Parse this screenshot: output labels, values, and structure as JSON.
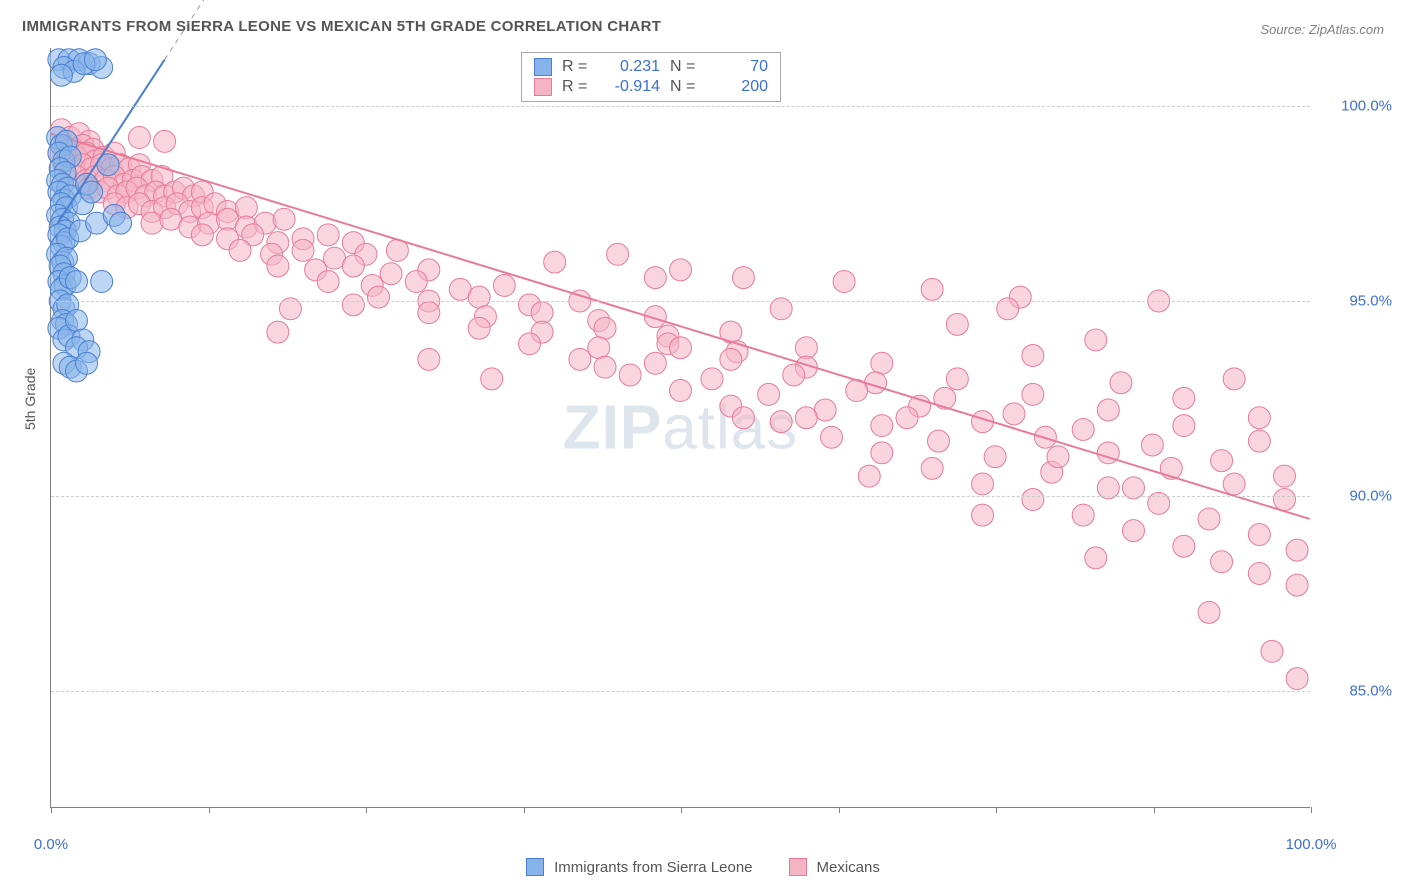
{
  "title": "IMMIGRANTS FROM SIERRA LEONE VS MEXICAN 5TH GRADE CORRELATION CHART",
  "source_prefix": "Source: ",
  "source_name": "ZipAtlas.com",
  "y_axis_title": "5th Grade",
  "watermark_bold": "ZIP",
  "watermark_rest": "atlas",
  "chart": {
    "type": "scatter",
    "background_color": "#ffffff",
    "grid_color": "#cccccc",
    "axis_color": "#808080",
    "tick_label_color": "#3b6fd6",
    "xlim": [
      0,
      100
    ],
    "ylim": [
      82,
      101.5
    ],
    "y_ticks": [
      85,
      90,
      95,
      100
    ],
    "y_tick_labels": [
      "85.0%",
      "90.0%",
      "95.0%",
      "100.0%"
    ],
    "x_ticks": [
      0,
      12.5,
      25,
      37.5,
      50,
      62.5,
      75,
      87.5,
      100
    ],
    "x_tick_labels": {
      "0": "0.0%",
      "100": "100.0%"
    },
    "marker_radius": 11,
    "marker_opacity": 0.55,
    "line_width": 2
  },
  "series": {
    "blue": {
      "label": "Immigrants from Sierra Leone",
      "fill": "#86b4ea",
      "stroke": "#4a7fd1",
      "R": "0.231",
      "N": "70",
      "trend": {
        "x1": 0.5,
        "y1": 97.0,
        "x2": 9,
        "y2": 101.2,
        "dashed_ext": true
      },
      "points": [
        [
          0.6,
          101.2
        ],
        [
          1.4,
          101.2
        ],
        [
          2.2,
          101.2
        ],
        [
          3.0,
          101.1
        ],
        [
          4.0,
          101.0
        ],
        [
          1.0,
          101.0
        ],
        [
          1.8,
          100.9
        ],
        [
          2.6,
          101.1
        ],
        [
          3.5,
          101.2
        ],
        [
          0.8,
          100.8
        ],
        [
          0.5,
          99.2
        ],
        [
          0.8,
          99.0
        ],
        [
          1.2,
          99.1
        ],
        [
          0.6,
          98.8
        ],
        [
          1.0,
          98.6
        ],
        [
          1.5,
          98.7
        ],
        [
          0.7,
          98.4
        ],
        [
          1.1,
          98.3
        ],
        [
          0.5,
          98.1
        ],
        [
          0.9,
          98.0
        ],
        [
          1.3,
          97.9
        ],
        [
          0.6,
          97.8
        ],
        [
          1.0,
          97.6
        ],
        [
          1.5,
          97.7
        ],
        [
          0.8,
          97.5
        ],
        [
          1.2,
          97.4
        ],
        [
          0.5,
          97.2
        ],
        [
          0.9,
          97.1
        ],
        [
          1.4,
          97.0
        ],
        [
          0.7,
          96.9
        ],
        [
          1.1,
          96.8
        ],
        [
          0.6,
          96.7
        ],
        [
          1.0,
          96.5
        ],
        [
          0.8,
          96.4
        ],
        [
          1.3,
          96.6
        ],
        [
          0.5,
          96.2
        ],
        [
          0.9,
          96.0
        ],
        [
          1.2,
          96.1
        ],
        [
          0.7,
          95.9
        ],
        [
          1.0,
          95.7
        ],
        [
          0.6,
          95.5
        ],
        [
          1.1,
          95.4
        ],
        [
          0.8,
          95.3
        ],
        [
          1.5,
          95.6
        ],
        [
          0.7,
          95.0
        ],
        [
          1.0,
          94.8
        ],
        [
          1.3,
          94.9
        ],
        [
          0.9,
          94.5
        ],
        [
          1.2,
          94.4
        ],
        [
          0.6,
          94.3
        ],
        [
          1.0,
          94.0
        ],
        [
          1.4,
          94.1
        ],
        [
          2.0,
          95.5
        ],
        [
          2.3,
          96.8
        ],
        [
          2.5,
          97.5
        ],
        [
          2.8,
          98.0
        ],
        [
          3.2,
          97.8
        ],
        [
          3.6,
          97.0
        ],
        [
          2.0,
          94.5
        ],
        [
          2.5,
          94.0
        ],
        [
          2.0,
          93.8
        ],
        [
          3.0,
          93.7
        ],
        [
          1.0,
          93.4
        ],
        [
          1.5,
          93.3
        ],
        [
          2.0,
          93.2
        ],
        [
          2.8,
          93.4
        ],
        [
          4.0,
          95.5
        ],
        [
          5.0,
          97.2
        ],
        [
          4.5,
          98.5
        ],
        [
          5.5,
          97.0
        ]
      ]
    },
    "pink": {
      "label": "Mexicans",
      "fill": "#f4b4c4",
      "stroke": "#e87b99",
      "R": "-0.914",
      "N": "200",
      "trend": {
        "x1": 0,
        "y1": 99.3,
        "x2": 100,
        "y2": 89.4,
        "dashed_ext": false
      },
      "points": [
        [
          0.8,
          99.4
        ],
        [
          1.5,
          99.2
        ],
        [
          2.2,
          99.3
        ],
        [
          3.0,
          99.1
        ],
        [
          1.0,
          99.0
        ],
        [
          1.8,
          98.9
        ],
        [
          2.5,
          99.0
        ],
        [
          3.3,
          98.9
        ],
        [
          0.6,
          98.8
        ],
        [
          1.3,
          98.7
        ],
        [
          2.0,
          98.7
        ],
        [
          2.8,
          98.8
        ],
        [
          3.5,
          98.6
        ],
        [
          4.2,
          98.7
        ],
        [
          5.0,
          98.8
        ],
        [
          1.0,
          98.5
        ],
        [
          1.8,
          98.4
        ],
        [
          2.5,
          98.5
        ],
        [
          3.2,
          98.4
        ],
        [
          4.0,
          98.5
        ],
        [
          4.8,
          98.4
        ],
        [
          5.5,
          98.5
        ],
        [
          6.2,
          98.4
        ],
        [
          7.0,
          98.5
        ],
        [
          2.0,
          98.2
        ],
        [
          2.8,
          98.1
        ],
        [
          3.5,
          98.2
        ],
        [
          4.3,
          98.1
        ],
        [
          5.0,
          98.2
        ],
        [
          5.8,
          98.0
        ],
        [
          6.5,
          98.1
        ],
        [
          7.2,
          98.2
        ],
        [
          8.0,
          98.1
        ],
        [
          8.8,
          98.2
        ],
        [
          3.0,
          97.9
        ],
        [
          3.8,
          97.8
        ],
        [
          4.5,
          97.9
        ],
        [
          5.3,
          97.7
        ],
        [
          6.0,
          97.8
        ],
        [
          6.8,
          97.9
        ],
        [
          7.5,
          97.7
        ],
        [
          8.3,
          97.8
        ],
        [
          9.0,
          97.7
        ],
        [
          9.8,
          97.8
        ],
        [
          10.5,
          97.9
        ],
        [
          11.3,
          97.7
        ],
        [
          12.0,
          97.8
        ],
        [
          5.0,
          97.5
        ],
        [
          6.0,
          97.4
        ],
        [
          7.0,
          97.5
        ],
        [
          8.0,
          97.3
        ],
        [
          9.0,
          97.4
        ],
        [
          10.0,
          97.5
        ],
        [
          11.0,
          97.3
        ],
        [
          12.0,
          97.4
        ],
        [
          13.0,
          97.5
        ],
        [
          14.0,
          97.3
        ],
        [
          15.5,
          97.4
        ],
        [
          8.0,
          97.0
        ],
        [
          9.5,
          97.1
        ],
        [
          11.0,
          96.9
        ],
        [
          12.5,
          97.0
        ],
        [
          14.0,
          97.1
        ],
        [
          15.5,
          96.9
        ],
        [
          17.0,
          97.0
        ],
        [
          18.5,
          97.1
        ],
        [
          12.0,
          96.7
        ],
        [
          14.0,
          96.6
        ],
        [
          16.0,
          96.7
        ],
        [
          18.0,
          96.5
        ],
        [
          20.0,
          96.6
        ],
        [
          22.0,
          96.7
        ],
        [
          24.0,
          96.5
        ],
        [
          15.0,
          96.3
        ],
        [
          17.5,
          96.2
        ],
        [
          20.0,
          96.3
        ],
        [
          22.5,
          96.1
        ],
        [
          25.0,
          96.2
        ],
        [
          27.5,
          96.3
        ],
        [
          18.0,
          95.9
        ],
        [
          21.0,
          95.8
        ],
        [
          24.0,
          95.9
        ],
        [
          27.0,
          95.7
        ],
        [
          30.0,
          95.8
        ],
        [
          22.0,
          95.5
        ],
        [
          25.5,
          95.4
        ],
        [
          29.0,
          95.5
        ],
        [
          32.5,
          95.3
        ],
        [
          36.0,
          95.4
        ],
        [
          26.0,
          95.1
        ],
        [
          30.0,
          95.0
        ],
        [
          34.0,
          95.1
        ],
        [
          38.0,
          94.9
        ],
        [
          42.0,
          95.0
        ],
        [
          30.0,
          94.7
        ],
        [
          34.5,
          94.6
        ],
        [
          39.0,
          94.7
        ],
        [
          43.5,
          94.5
        ],
        [
          48.0,
          94.6
        ],
        [
          19.0,
          94.8
        ],
        [
          34.0,
          94.3
        ],
        [
          39.0,
          94.2
        ],
        [
          44.0,
          94.3
        ],
        [
          49.0,
          94.1
        ],
        [
          54.0,
          94.2
        ],
        [
          38.0,
          93.9
        ],
        [
          43.5,
          93.8
        ],
        [
          49.0,
          93.9
        ],
        [
          54.5,
          93.7
        ],
        [
          60.0,
          93.8
        ],
        [
          42.0,
          93.5
        ],
        [
          48.0,
          93.4
        ],
        [
          54.0,
          93.5
        ],
        [
          60.0,
          93.3
        ],
        [
          66.0,
          93.4
        ],
        [
          46.0,
          93.1
        ],
        [
          52.5,
          93.0
        ],
        [
          59.0,
          93.1
        ],
        [
          65.5,
          92.9
        ],
        [
          72.0,
          93.0
        ],
        [
          50.0,
          92.7
        ],
        [
          57.0,
          92.6
        ],
        [
          64.0,
          92.7
        ],
        [
          71.0,
          92.5
        ],
        [
          78.0,
          92.6
        ],
        [
          54.0,
          92.3
        ],
        [
          61.5,
          92.2
        ],
        [
          69.0,
          92.3
        ],
        [
          76.5,
          92.1
        ],
        [
          84.0,
          92.2
        ],
        [
          58.0,
          91.9
        ],
        [
          66.0,
          91.8
        ],
        [
          74.0,
          91.9
        ],
        [
          82.0,
          91.7
        ],
        [
          90.0,
          91.8
        ],
        [
          62.0,
          91.5
        ],
        [
          70.5,
          91.4
        ],
        [
          79.0,
          91.5
        ],
        [
          87.5,
          91.3
        ],
        [
          96.0,
          91.4
        ],
        [
          66.0,
          91.1
        ],
        [
          75.0,
          91.0
        ],
        [
          84.0,
          91.1
        ],
        [
          93.0,
          90.9
        ],
        [
          70.0,
          90.7
        ],
        [
          79.5,
          90.6
        ],
        [
          89.0,
          90.7
        ],
        [
          98.0,
          90.5
        ],
        [
          74.0,
          90.3
        ],
        [
          84.0,
          90.2
        ],
        [
          94.0,
          90.3
        ],
        [
          78.0,
          89.9
        ],
        [
          88.0,
          89.8
        ],
        [
          98.0,
          89.9
        ],
        [
          82.0,
          89.5
        ],
        [
          92.0,
          89.4
        ],
        [
          86.0,
          89.1
        ],
        [
          96.0,
          89.0
        ],
        [
          90.0,
          88.7
        ],
        [
          99.0,
          88.6
        ],
        [
          83.0,
          88.4
        ],
        [
          93.0,
          88.3
        ],
        [
          96.0,
          88.0
        ],
        [
          99.0,
          87.7
        ],
        [
          92.0,
          87.0
        ],
        [
          97.0,
          86.0
        ],
        [
          99.0,
          85.3
        ],
        [
          48.0,
          95.6
        ],
        [
          55.0,
          95.6
        ],
        [
          50.0,
          95.8
        ],
        [
          63.0,
          95.5
        ],
        [
          70.0,
          95.3
        ],
        [
          77.0,
          95.1
        ],
        [
          76.0,
          94.8
        ],
        [
          18.0,
          94.2
        ],
        [
          24.0,
          94.9
        ],
        [
          88.0,
          95.0
        ],
        [
          83.0,
          94.0
        ],
        [
          85.0,
          92.9
        ],
        [
          78.0,
          93.6
        ],
        [
          40.0,
          96.0
        ],
        [
          45.0,
          96.2
        ],
        [
          7.0,
          99.2
        ],
        [
          9.0,
          99.1
        ],
        [
          35.0,
          93.0
        ],
        [
          30.0,
          93.5
        ],
        [
          90.0,
          92.5
        ],
        [
          72.0,
          94.4
        ],
        [
          68.0,
          92.0
        ],
        [
          60.0,
          92.0
        ],
        [
          94.0,
          93.0
        ],
        [
          80.0,
          91.0
        ],
        [
          96.0,
          92.0
        ],
        [
          74.0,
          89.5
        ],
        [
          86.0,
          90.2
        ],
        [
          65.0,
          90.5
        ],
        [
          55.0,
          92.0
        ],
        [
          58.0,
          94.8
        ],
        [
          44.0,
          93.3
        ],
        [
          50.0,
          93.8
        ]
      ]
    }
  },
  "legend_top_labels": {
    "R": "R =",
    "N": "N ="
  },
  "legend_bottom_order": [
    "blue",
    "pink"
  ]
}
